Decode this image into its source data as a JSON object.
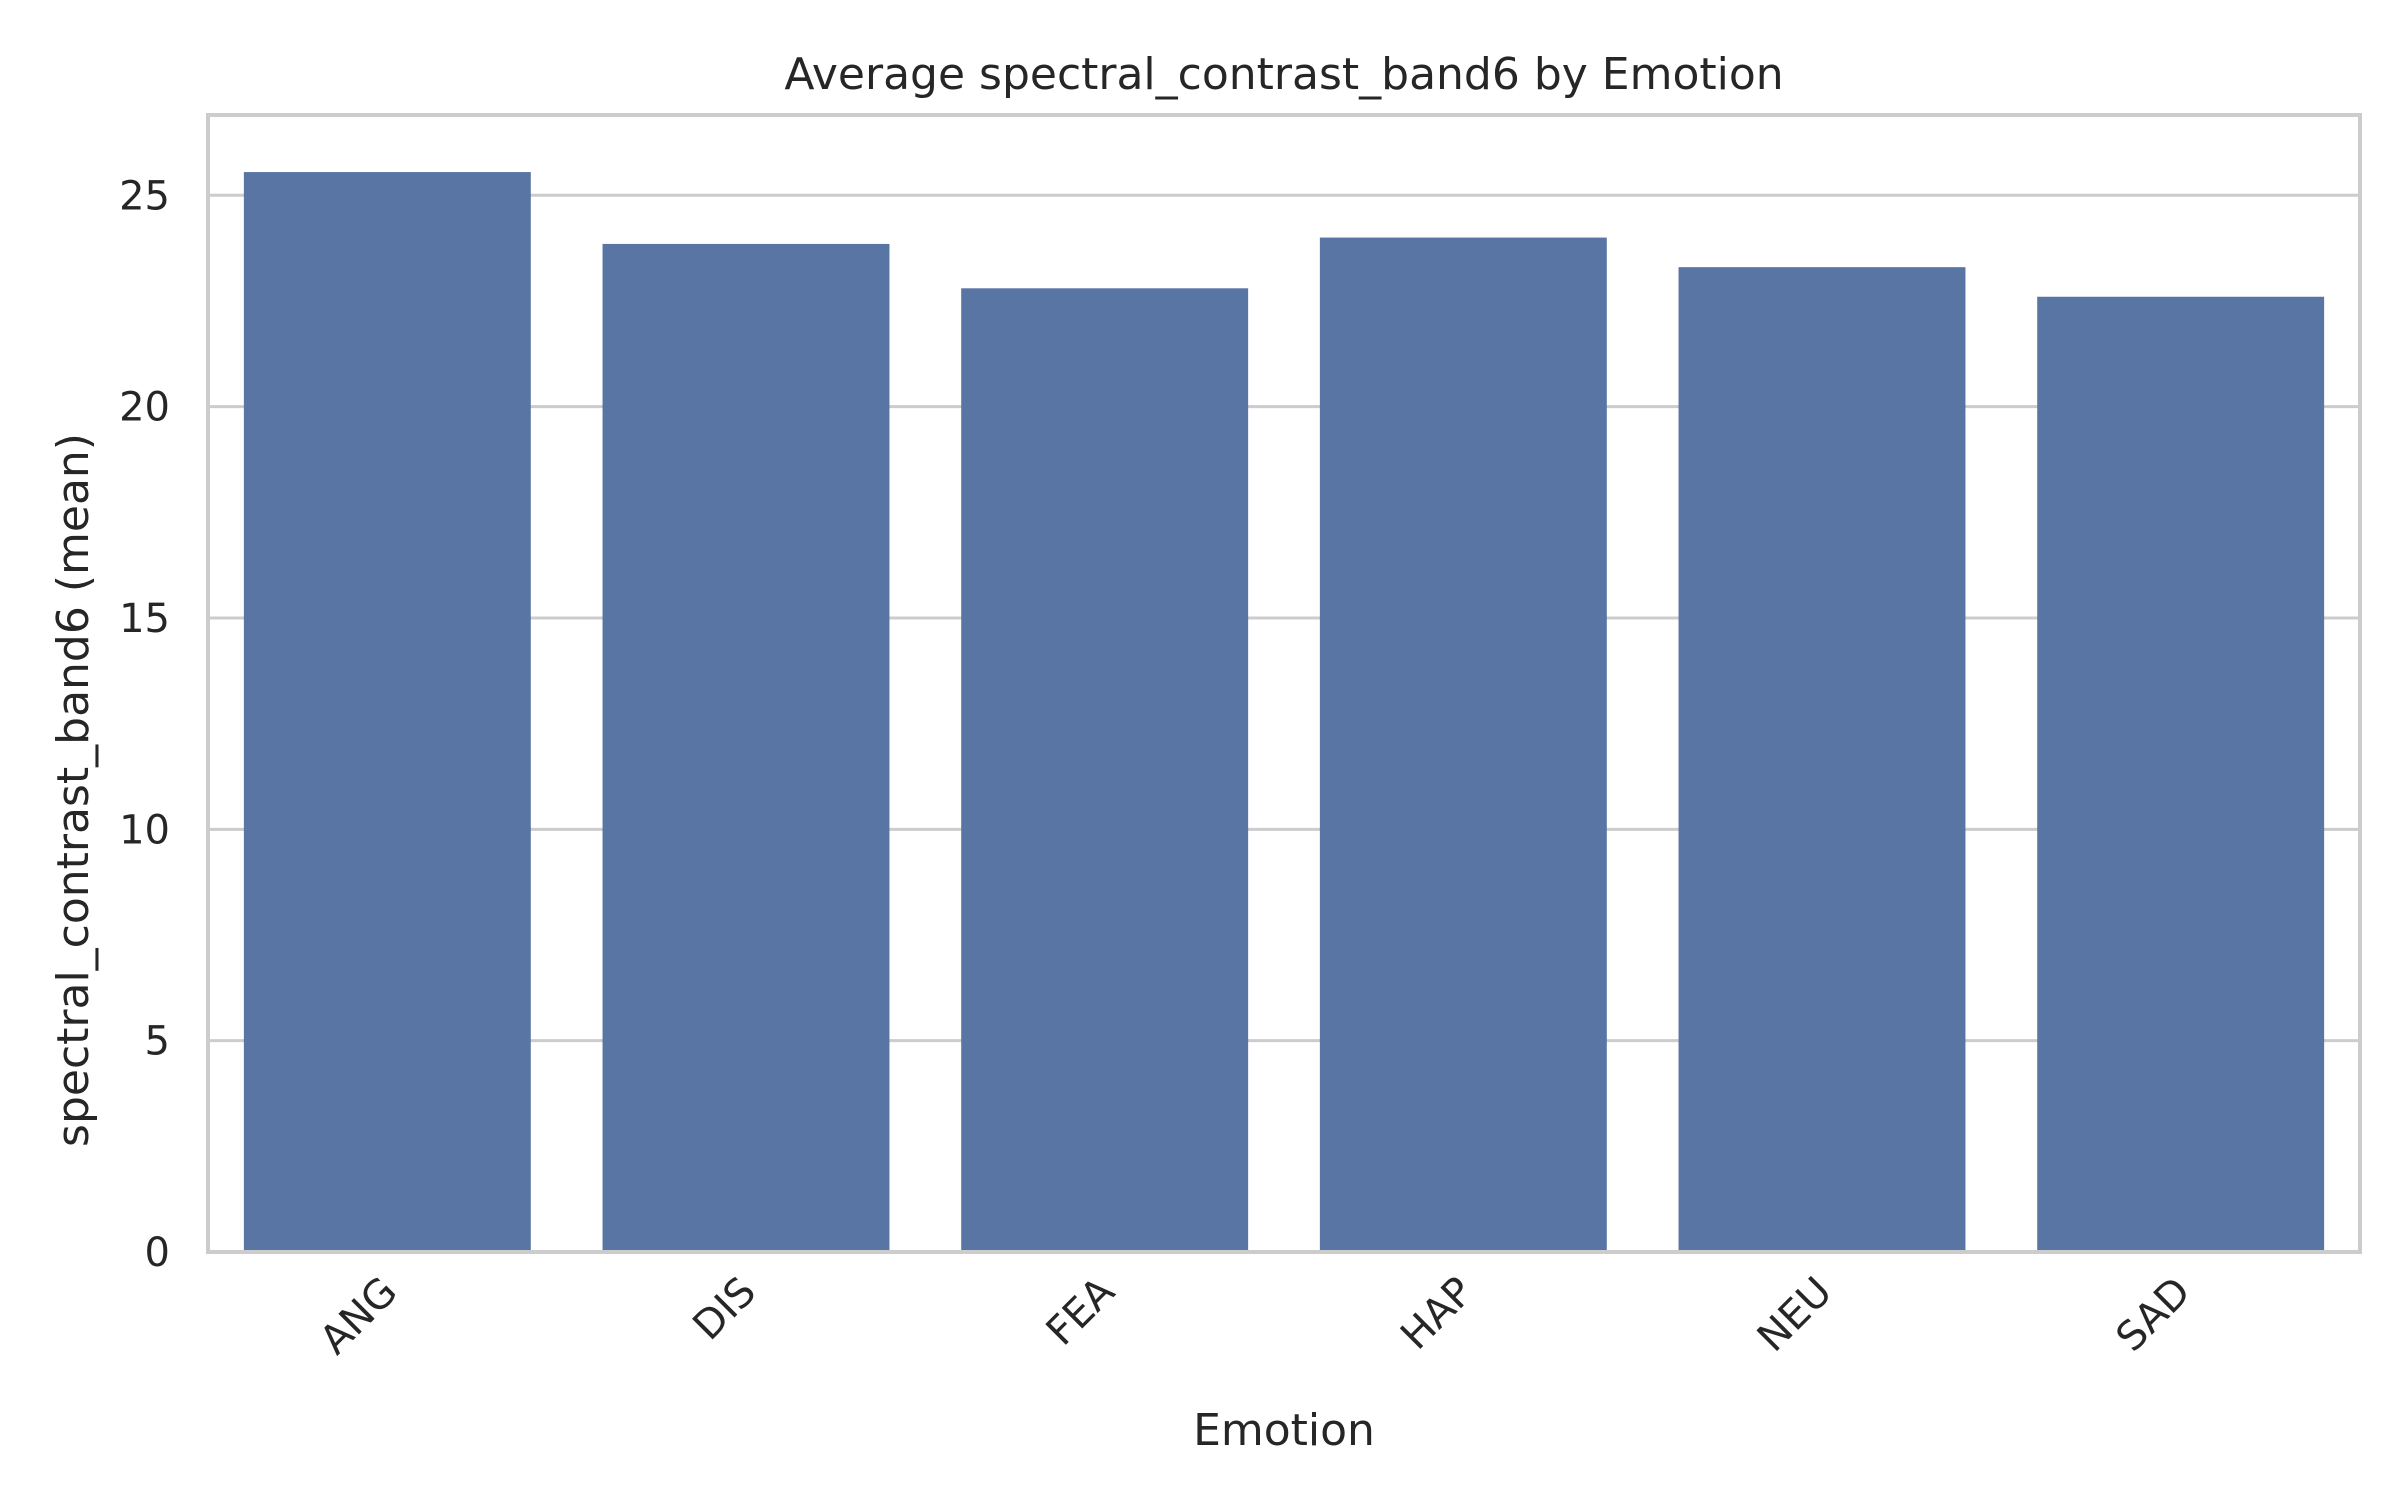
{
  "chart_data": {
    "type": "bar",
    "title": "Average spectral_contrast_band6 by Emotion",
    "xlabel": "Emotion",
    "ylabel": "spectral_contrast_band6 (mean)",
    "categories": [
      "ANG",
      "DIS",
      "FEA",
      "HAP",
      "NEU",
      "SAD"
    ],
    "values": [
      25.55,
      23.85,
      22.8,
      24.0,
      23.3,
      22.6
    ],
    "ylim": [
      0,
      26.9
    ],
    "yticks": [
      0,
      5,
      10,
      15,
      20,
      25
    ],
    "grid": "y",
    "bar_color": "#5975a4",
    "legend": "none"
  }
}
